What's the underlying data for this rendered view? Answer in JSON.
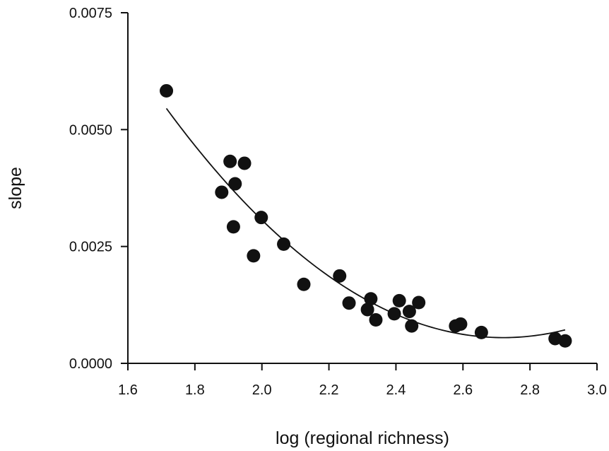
{
  "chart_data": {
    "type": "scatter",
    "title": "",
    "xlabel": "log (regional richness)",
    "ylabel": "slope",
    "xlim": [
      1.6,
      3.0
    ],
    "ylim": [
      0.0,
      0.0075
    ],
    "x_ticks": [
      1.6,
      1.8,
      2.0,
      2.2,
      2.4,
      2.6,
      2.8,
      3.0
    ],
    "x_tick_labels": [
      "1.6",
      "1.8",
      "2.0",
      "2.2",
      "2.4",
      "2.6",
      "2.8",
      "3.0"
    ],
    "y_ticks": [
      0.0,
      0.0025,
      0.005,
      0.0075
    ],
    "y_tick_labels": [
      "0.0000",
      "0.0025",
      "0.0050",
      "0.0075"
    ],
    "grid": false,
    "legend": "none",
    "marker_color": "#111111",
    "fit_line_color": "#111111",
    "points": [
      {
        "x": 1.715,
        "y": 0.00583
      },
      {
        "x": 1.88,
        "y": 0.00366
      },
      {
        "x": 1.905,
        "y": 0.00432
      },
      {
        "x": 1.915,
        "y": 0.00292
      },
      {
        "x": 1.92,
        "y": 0.00384
      },
      {
        "x": 1.948,
        "y": 0.00428
      },
      {
        "x": 1.975,
        "y": 0.0023
      },
      {
        "x": 1.998,
        "y": 0.00312
      },
      {
        "x": 2.065,
        "y": 0.00255
      },
      {
        "x": 2.125,
        "y": 0.00169
      },
      {
        "x": 2.232,
        "y": 0.00187
      },
      {
        "x": 2.26,
        "y": 0.00129
      },
      {
        "x": 2.315,
        "y": 0.00115
      },
      {
        "x": 2.325,
        "y": 0.00138
      },
      {
        "x": 2.34,
        "y": 0.00093
      },
      {
        "x": 2.395,
        "y": 0.00106
      },
      {
        "x": 2.41,
        "y": 0.00134
      },
      {
        "x": 2.44,
        "y": 0.00111
      },
      {
        "x": 2.447,
        "y": 0.0008
      },
      {
        "x": 2.468,
        "y": 0.0013
      },
      {
        "x": 2.578,
        "y": 0.0008
      },
      {
        "x": 2.593,
        "y": 0.00084
      },
      {
        "x": 2.655,
        "y": 0.00066
      },
      {
        "x": 2.875,
        "y": 0.00053
      },
      {
        "x": 2.905,
        "y": 0.00048
      }
    ],
    "fit_curve": {
      "type": "quadratic",
      "x_range": [
        1.715,
        2.905
      ],
      "x_vertex": 2.72,
      "y_vertex": 0.00055,
      "a": 0.004854
    }
  }
}
